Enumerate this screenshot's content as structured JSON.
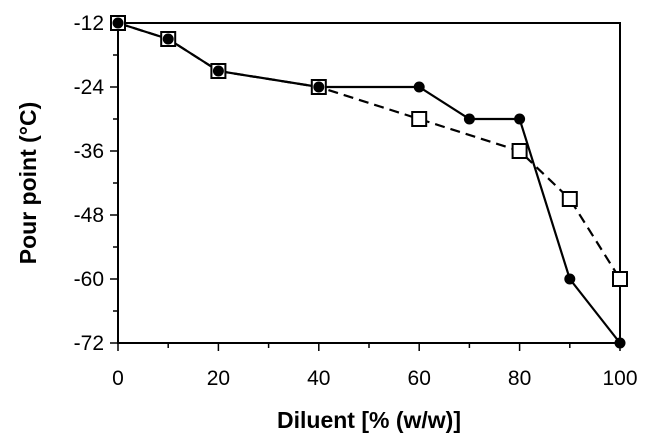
{
  "chart_data": {
    "type": "line",
    "xlabel": "Diluent [% (w/w)]",
    "ylabel": "Pour point (°C)",
    "xlim": [
      0,
      100
    ],
    "ylim": [
      -72,
      -12
    ],
    "x_ticks": [
      0,
      20,
      40,
      60,
      80,
      100
    ],
    "x_tick_labels": [
      "0",
      "20",
      "40",
      "60",
      "80",
      "100"
    ],
    "y_ticks": [
      -12,
      -24,
      -36,
      -48,
      -60,
      -72
    ],
    "y_tick_labels": [
      "-12",
      "-24",
      "-36",
      "-48",
      "-60",
      "-72"
    ],
    "grid": false,
    "series": [
      {
        "marker": "filled-circle",
        "line_style": "solid",
        "color": "#000000",
        "points": [
          {
            "x": 0,
            "y": -12
          },
          {
            "x": 10,
            "y": -15
          },
          {
            "x": 20,
            "y": -21
          },
          {
            "x": 40,
            "y": -24
          },
          {
            "x": 60,
            "y": -24
          },
          {
            "x": 70,
            "y": -30
          },
          {
            "x": 80,
            "y": -30
          },
          {
            "x": 90,
            "y": -60
          },
          {
            "x": 100,
            "y": -72
          }
        ]
      },
      {
        "marker": "open-square",
        "line_style": "dashed",
        "color": "#000000",
        "points": [
          {
            "x": 0,
            "y": -12
          },
          {
            "x": 10,
            "y": -15
          },
          {
            "x": 20,
            "y": -21
          },
          {
            "x": 40,
            "y": -24
          },
          {
            "x": 60,
            "y": -30
          },
          {
            "x": 80,
            "y": -36
          },
          {
            "x": 90,
            "y": -45
          },
          {
            "x": 100,
            "y": -60
          }
        ]
      }
    ]
  }
}
